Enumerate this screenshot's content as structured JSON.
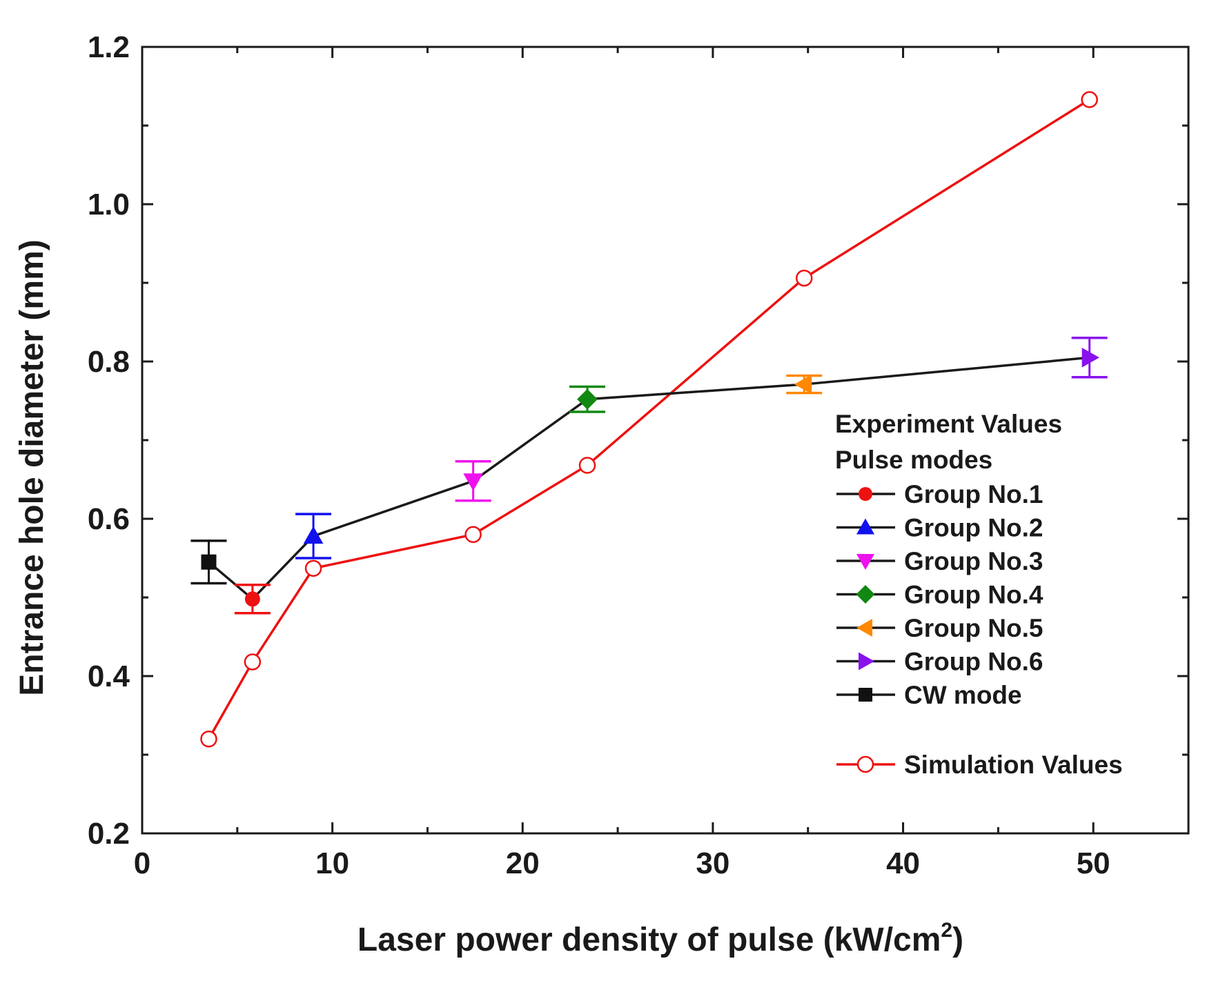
{
  "chart_data": {
    "type": "line",
    "title": "",
    "xlabel": "Laser power density of pulse (kW/cm",
    "xlabel_superscript": "2",
    "xlabel_close": ")",
    "ylabel": "Entrance hole diameter (mm)",
    "xlim": [
      0,
      55
    ],
    "ylim": [
      0.2,
      1.2
    ],
    "xticks": [
      0,
      10,
      20,
      30,
      40,
      50
    ],
    "xtick_labels": [
      "0",
      "10",
      "20",
      "30",
      "40",
      "50"
    ],
    "yticks": [
      0.2,
      0.4,
      0.6,
      0.8,
      1.0,
      1.2
    ],
    "ytick_labels": [
      "0.2",
      "0.4",
      "0.6",
      "0.8",
      "1.0",
      "1.2"
    ],
    "grid": false,
    "legend_position": "right",
    "legend_heading_1": "Experiment Values",
    "legend_heading_2": "Pulse modes",
    "experiment_line_color": "#1a1a1a",
    "experiment_points": [
      {
        "name": "CW mode",
        "x": 3.5,
        "y": 0.545,
        "err": 0.027,
        "marker": "square",
        "color": "#111111"
      },
      {
        "name": "Group No.1",
        "x": 5.8,
        "y": 0.498,
        "err": 0.018,
        "marker": "circle",
        "color": "#ee1111"
      },
      {
        "name": "Group No.2",
        "x": 9.0,
        "y": 0.578,
        "err": 0.028,
        "marker": "triangle-up",
        "color": "#1111ee"
      },
      {
        "name": "Group No.3",
        "x": 17.4,
        "y": 0.648,
        "err": 0.025,
        "marker": "triangle-down",
        "color": "#ee11ee"
      },
      {
        "name": "Group No.4",
        "x": 23.4,
        "y": 0.752,
        "err": 0.016,
        "marker": "diamond",
        "color": "#118811"
      },
      {
        "name": "Group No.5",
        "x": 34.8,
        "y": 0.771,
        "err": 0.011,
        "marker": "triangle-left",
        "color": "#ff8800"
      },
      {
        "name": "Group No.6",
        "x": 49.8,
        "y": 0.805,
        "err": 0.025,
        "marker": "triangle-right",
        "color": "#8a11ee"
      }
    ],
    "legend_order": [
      "Group No.1",
      "Group No.2",
      "Group No.3",
      "Group No.4",
      "Group No.5",
      "Group No.6",
      "CW mode"
    ],
    "simulation_series": {
      "name": "Simulation Values",
      "color": "#ee1111",
      "x": [
        3.5,
        5.8,
        9.0,
        17.4,
        23.4,
        34.8,
        49.8
      ],
      "y": [
        0.32,
        0.418,
        0.537,
        0.58,
        0.668,
        0.906,
        1.133
      ]
    }
  }
}
